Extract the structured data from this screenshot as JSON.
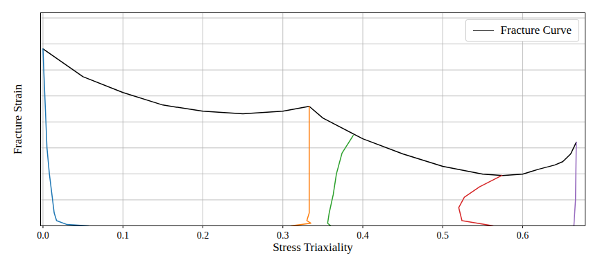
{
  "chart_data": {
    "type": "line",
    "xlabel": "Stress Triaxiality",
    "ylabel": "Fracture Strain",
    "xlim": [
      -0.003,
      0.678
    ],
    "ylim": [
      0,
      0.82
    ],
    "xticks": [
      {
        "value": 0,
        "label": "0.0"
      },
      {
        "value": 0.1,
        "label": "0.1"
      },
      {
        "value": 0.2,
        "label": "0.2"
      },
      {
        "value": 0.3,
        "label": "0.3"
      },
      {
        "value": 0.4,
        "label": "0.4"
      },
      {
        "value": 0.5,
        "label": "0.5"
      },
      {
        "value": 0.6,
        "label": "0.6"
      }
    ],
    "yticks": [
      0,
      0.1,
      0.2,
      0.3,
      0.4,
      0.5,
      0.6,
      0.7,
      0.8
    ],
    "tick_labels": "x",
    "grid": true,
    "legend": "upper right",
    "series": [
      {
        "name": "Fracture Curve",
        "color": "#000000",
        "x": [
          0,
          0.05,
          0.1,
          0.15,
          0.2,
          0.25,
          0.3,
          0.333,
          0.35,
          0.4,
          0.45,
          0.5,
          0.55,
          0.575,
          0.6,
          0.62,
          0.64,
          0.65,
          0.66,
          0.667
        ],
        "values": [
          0.681,
          0.574,
          0.513,
          0.465,
          0.441,
          0.431,
          0.441,
          0.46,
          0.415,
          0.335,
          0.277,
          0.229,
          0.199,
          0.194,
          0.199,
          0.218,
          0.234,
          0.247,
          0.277,
          0.322
        ]
      },
      {
        "color": "#1f77b4",
        "x": [
          0.057,
          0.03,
          0.017,
          0.014,
          0.012,
          0.008,
          0.005,
          0.003,
          0.001,
          0.0
        ],
        "values": [
          0,
          0.005,
          0.02,
          0.05,
          0.1,
          0.2,
          0.3,
          0.45,
          0.6,
          0.681
        ]
      },
      {
        "color": "#ff7f0e",
        "x": [
          0.31,
          0.335,
          0.33,
          0.333,
          0.333
        ],
        "values": [
          0,
          0.01,
          0.02,
          0.05,
          0.46
        ]
      },
      {
        "color": "#2ca02c",
        "x": [
          0.36,
          0.356,
          0.358,
          0.363,
          0.367,
          0.374,
          0.388
        ],
        "values": [
          0,
          0.01,
          0.05,
          0.12,
          0.2,
          0.28,
          0.348
        ]
      },
      {
        "color": "#d62728",
        "x": [
          0.563,
          0.524,
          0.52,
          0.527,
          0.546,
          0.574
        ],
        "values": [
          0,
          0.02,
          0.07,
          0.11,
          0.15,
          0.194
        ]
      },
      {
        "color": "#9467bd",
        "x": [
          0.664,
          0.666,
          0.667
        ],
        "values": [
          0,
          0.1,
          0.322
        ]
      }
    ]
  }
}
